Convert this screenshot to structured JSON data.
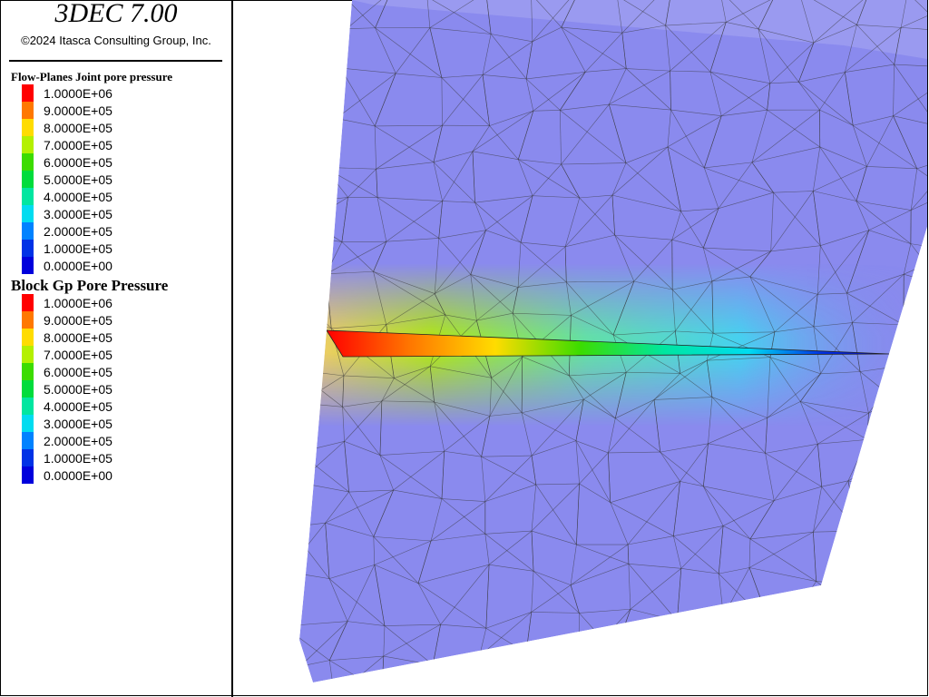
{
  "header": {
    "title": "3DEC 7.00",
    "copyright": "©2024 Itasca Consulting Group, Inc."
  },
  "legends": [
    {
      "title": "Flow-Planes Joint pore pressure",
      "items": [
        {
          "label": "1.0000E+06",
          "color": "#ff0000"
        },
        {
          "label": "9.0000E+05",
          "color": "#ff7800"
        },
        {
          "label": "8.0000E+05",
          "color": "#ffdc00"
        },
        {
          "label": "7.0000E+05",
          "color": "#b4f000"
        },
        {
          "label": "6.0000E+05",
          "color": "#3cdc00"
        },
        {
          "label": "5.0000E+05",
          "color": "#00dc3c"
        },
        {
          "label": "4.0000E+05",
          "color": "#00e6a0"
        },
        {
          "label": "3.0000E+05",
          "color": "#00dcf0"
        },
        {
          "label": "2.0000E+05",
          "color": "#0082ff"
        },
        {
          "label": "1.0000E+05",
          "color": "#0032e6"
        },
        {
          "label": "0.0000E+00",
          "color": "#0000dc"
        }
      ]
    },
    {
      "title": "Block  Gp Pore Pressure",
      "items": [
        {
          "label": "1.0000E+06",
          "color": "#ff0000"
        },
        {
          "label": "9.0000E+05",
          "color": "#ff7800"
        },
        {
          "label": "8.0000E+05",
          "color": "#ffdc00"
        },
        {
          "label": "7.0000E+05",
          "color": "#b4f000"
        },
        {
          "label": "6.0000E+05",
          "color": "#3cdc00"
        },
        {
          "label": "5.0000E+05",
          "color": "#00dc3c"
        },
        {
          "label": "4.0000E+05",
          "color": "#00e6a0"
        },
        {
          "label": "3.0000E+05",
          "color": "#00dcf0"
        },
        {
          "label": "2.0000E+05",
          "color": "#0082ff"
        },
        {
          "label": "1.0000E+05",
          "color": "#0032e6"
        },
        {
          "label": "0.0000E+00",
          "color": "#0000dc"
        }
      ]
    }
  ]
}
